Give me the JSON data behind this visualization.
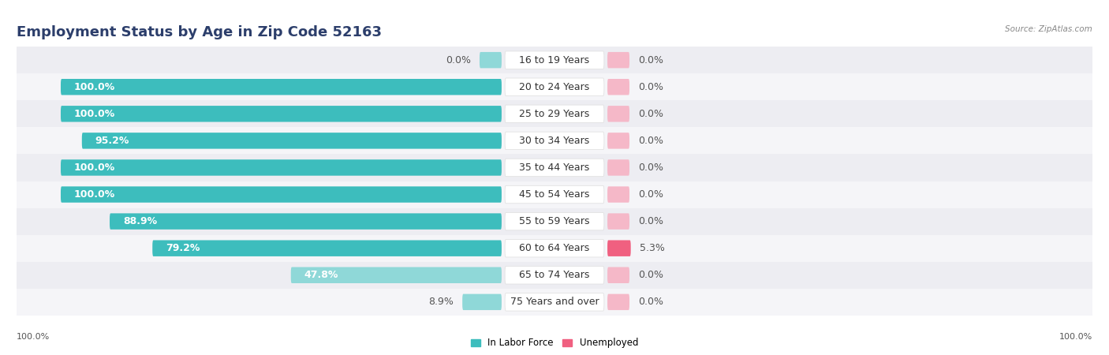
{
  "title": "Employment Status by Age in Zip Code 52163",
  "source": "Source: ZipAtlas.com",
  "categories": [
    "16 to 19 Years",
    "20 to 24 Years",
    "25 to 29 Years",
    "30 to 34 Years",
    "35 to 44 Years",
    "45 to 54 Years",
    "55 to 59 Years",
    "60 to 64 Years",
    "65 to 74 Years",
    "75 Years and over"
  ],
  "labor_force": [
    0.0,
    100.0,
    100.0,
    95.2,
    100.0,
    100.0,
    88.9,
    79.2,
    47.8,
    8.9
  ],
  "unemployed": [
    0.0,
    0.0,
    0.0,
    0.0,
    0.0,
    0.0,
    0.0,
    5.3,
    0.0,
    0.0
  ],
  "color_labor": "#3dbdbd",
  "color_labor_light": "#8fd8d8",
  "color_unemployed_light": "#f5b8c8",
  "color_unemployed_strong": "#f06080",
  "row_bg_even": "#ededf2",
  "row_bg_odd": "#f5f5f8",
  "axis_label_left": "100.0%",
  "axis_label_right": "100.0%",
  "legend_labor": "In Labor Force",
  "legend_unemployed": "Unemployed",
  "title_fontsize": 13,
  "label_fontsize": 9,
  "cat_fontsize": 9
}
